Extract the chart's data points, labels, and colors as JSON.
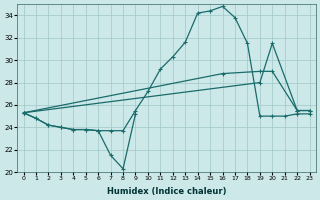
{
  "xlabel": "Humidex (Indice chaleur)",
  "bg_color": "#cce8e8",
  "grid_color": "#a0c8c8",
  "line_color": "#1a6b6b",
  "xlim": [
    -0.5,
    23.5
  ],
  "ylim": [
    20,
    35
  ],
  "yticks": [
    20,
    22,
    24,
    26,
    28,
    30,
    32,
    34
  ],
  "xticks": [
    0,
    1,
    2,
    3,
    4,
    5,
    6,
    7,
    8,
    9,
    10,
    11,
    12,
    13,
    14,
    15,
    16,
    17,
    18,
    19,
    20,
    21,
    22,
    23
  ],
  "line_jagged_x": [
    0,
    1,
    2,
    3,
    4,
    5,
    6,
    7,
    8,
    9
  ],
  "line_jagged_y": [
    25.3,
    24.8,
    24.2,
    24.0,
    23.8,
    23.8,
    23.7,
    21.5,
    20.3,
    25.2
  ],
  "line_bell_x": [
    0,
    1,
    2,
    3,
    4,
    5,
    6,
    7,
    8,
    9,
    10,
    11,
    12,
    13,
    14,
    15,
    16,
    17,
    18,
    19,
    20,
    21,
    22,
    23
  ],
  "line_bell_y": [
    25.3,
    24.8,
    24.2,
    24.0,
    23.8,
    23.8,
    23.7,
    23.7,
    23.7,
    25.5,
    27.2,
    29.2,
    30.3,
    31.6,
    34.2,
    34.4,
    34.8,
    33.8,
    31.5,
    25.0,
    25.0,
    25.0,
    25.2,
    25.2
  ],
  "line_upper_diag_x": [
    0,
    16,
    19,
    20,
    22,
    23
  ],
  "line_upper_diag_y": [
    25.3,
    28.8,
    29.0,
    29.0,
    25.5,
    25.5
  ],
  "line_lower_diag_x": [
    0,
    19,
    20,
    22,
    23
  ],
  "line_lower_diag_y": [
    25.3,
    28.0,
    31.5,
    25.5,
    25.5
  ]
}
